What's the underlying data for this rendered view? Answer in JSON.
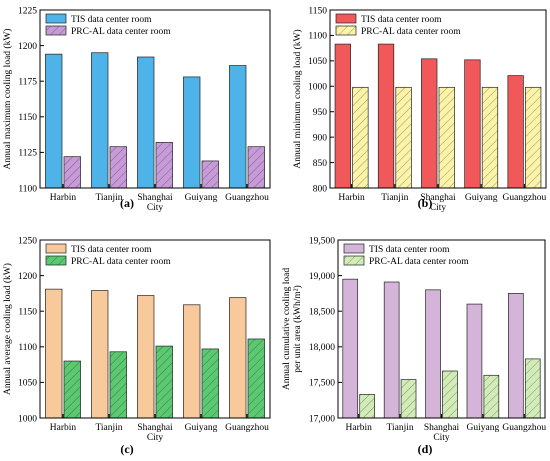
{
  "figure": {
    "background": "#ffffff"
  },
  "chart_data": [
    {
      "id": "a",
      "type": "bar",
      "panel_label": "(a)",
      "categories": [
        "Harbin",
        "Tianjin",
        "Shanghai City",
        "Guiyang",
        "Guangzhou"
      ],
      "ylabel": "Annual maximum cooling load (kW)",
      "ylim": [
        1100,
        1225
      ],
      "yticks": [
        1100,
        1125,
        1150,
        1175,
        1200,
        1225
      ],
      "legend_position": "top-left",
      "series": [
        {
          "name": "TIS data center room",
          "values": [
            1194,
            1195,
            1192,
            1178,
            1186
          ],
          "color": "#4db3e8",
          "hatch": false
        },
        {
          "name": "PRC-AL data center room",
          "values": [
            1122,
            1129,
            1132,
            1119,
            1129
          ],
          "color": "#c79ad8",
          "hatch": true
        }
      ]
    },
    {
      "id": "b",
      "type": "bar",
      "panel_label": "(b)",
      "categories": [
        "Harbin",
        "Tianjin",
        "Shanghai City",
        "Guiyang",
        "Guangzhou"
      ],
      "ylabel": "Annual minimum cooling load (kW)",
      "ylim": [
        800,
        1150
      ],
      "yticks": [
        800,
        850,
        900,
        950,
        1000,
        1050,
        1100,
        1150
      ],
      "legend_position": "top-left",
      "series": [
        {
          "name": "TIS data center room",
          "values": [
            1083,
            1083,
            1054,
            1052,
            1021
          ],
          "color": "#f0585a",
          "hatch": false
        },
        {
          "name": "PRC-AL data center room",
          "values": [
            998,
            998,
            998,
            998,
            998
          ],
          "color": "#fbf3a8",
          "hatch": true
        }
      ]
    },
    {
      "id": "c",
      "type": "bar",
      "panel_label": "(c)",
      "categories": [
        "Harbin",
        "Tianjin",
        "Shanghai City",
        "Guiyang",
        "Guangzhou"
      ],
      "ylabel": "Annual average cooling load (kW)",
      "ylim": [
        1000,
        1250
      ],
      "yticks": [
        1000,
        1050,
        1100,
        1150,
        1200,
        1250
      ],
      "legend_position": "top-left",
      "series": [
        {
          "name": "TIS data center room",
          "values": [
            1181,
            1179,
            1172,
            1159,
            1169
          ],
          "color": "#f8c99a",
          "hatch": false
        },
        {
          "name": "PRC-AL data center room",
          "values": [
            1080,
            1093,
            1101,
            1097,
            1111
          ],
          "color": "#5cc972",
          "hatch": true
        }
      ]
    },
    {
      "id": "d",
      "type": "bar",
      "panel_label": "(d)",
      "categories": [
        "Harbin",
        "Tianjin",
        "Shanghai City",
        "Guiyang",
        "Guangzhou"
      ],
      "ylabel_lines": [
        "Annual cumulative cooling  load",
        "per unit area (kWh/m²)"
      ],
      "ylim": [
        17000,
        19500
      ],
      "yticks": [
        17000,
        17500,
        18000,
        18500,
        19000,
        19500
      ],
      "tick_format": "thousands",
      "legend_position": "top-left",
      "series": [
        {
          "name": "TIS data center room",
          "values": [
            18950,
            18910,
            18800,
            18600,
            18750
          ],
          "color": "#d4b5d9",
          "hatch": false
        },
        {
          "name": "PRC-AL data center room",
          "values": [
            17330,
            17540,
            17660,
            17600,
            17830
          ],
          "color": "#d2ecb8",
          "hatch": true
        }
      ]
    }
  ]
}
